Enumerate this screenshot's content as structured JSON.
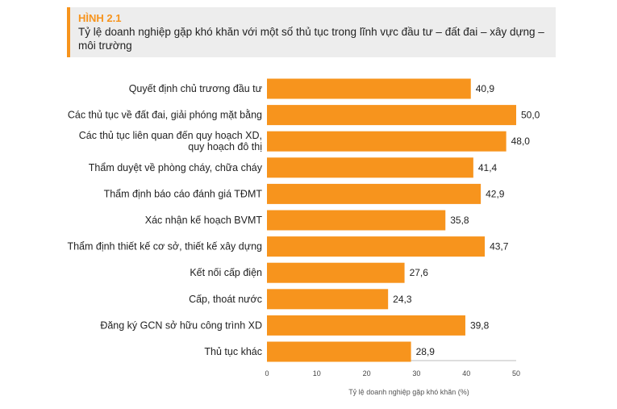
{
  "figure": {
    "number": "HÌNH 2.1",
    "title": "Tỷ lệ doanh nghiệp gặp khó khăn với một số thủ tục trong lĩnh vực đầu tư – đất đai – xây dựng – môi trường"
  },
  "chart_data": {
    "type": "bar",
    "orientation": "horizontal",
    "categories": [
      "Quyết định chủ trương đầu tư",
      "Các thủ tục về đất đai, giải phóng mặt bằng",
      "Các thủ tục liên quan đến quy hoạch XD,\nquy hoạch đô thị",
      "Thẩm duyệt về phòng cháy, chữa cháy",
      "Thẩm định báo cáo đánh giá TĐMT",
      "Xác nhận kế hoạch BVMT",
      "Thẩm định thiết kế cơ sở, thiết kế xây dựng",
      "Kết nối cấp điện",
      "Cấp, thoát nước",
      "Đăng ký GCN sở hữu công trình XD",
      "Thủ tục khác"
    ],
    "values": [
      40.9,
      50.0,
      48.0,
      41.4,
      42.9,
      35.8,
      43.7,
      27.6,
      24.3,
      39.8,
      28.9
    ],
    "value_labels": [
      "40,9",
      "50,0",
      "48,0",
      "41,4",
      "42,9",
      "35,8",
      "43,7",
      "27,6",
      "24,3",
      "39,8",
      "28,9"
    ],
    "xlabel": "Tỷ lệ doanh nghiệp gặp khó khăn (%)",
    "ylabel": "",
    "xlim": [
      0,
      50
    ],
    "xticks": [
      0,
      10,
      20,
      30,
      40,
      50
    ],
    "grid": false,
    "bar_color": "#f7941d"
  }
}
